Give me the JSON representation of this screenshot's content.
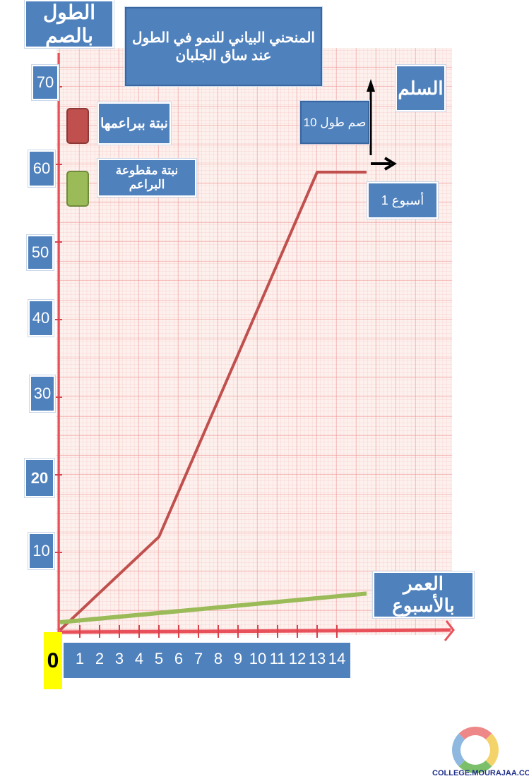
{
  "chart_data": {
    "type": "line",
    "title": "المنحني البياني للنمو في الطول عند ساق الجلبان",
    "ylabel": "الطول بالصم",
    "xlabel": "العمر بالأسبوع",
    "origin_label": "0",
    "xlim": [
      0,
      20
    ],
    "ylim": [
      0,
      70
    ],
    "x_ticks": [
      "1",
      "2",
      "3",
      "4",
      "5",
      "6",
      "7",
      "8",
      "9",
      "10",
      "11",
      "12",
      "13",
      "14"
    ],
    "y_ticks": [
      "10",
      "20",
      "30",
      "40",
      "50",
      "60",
      "70"
    ],
    "grid": true,
    "legend_placement": "top-left",
    "series": [
      {
        "name": "نبتة ببراعمها",
        "color": "#c0504d",
        "points": [
          [
            0,
            0
          ],
          [
            5,
            12
          ],
          [
            13,
            59
          ],
          [
            15.5,
            59
          ]
        ]
      },
      {
        "name": "نبتة مقطوعة البراعم",
        "color": "#9bbb59",
        "points": [
          [
            0,
            1
          ],
          [
            15.5,
            4.7
          ]
        ]
      }
    ],
    "scale": {
      "title": "السلم",
      "y_unit": "10 صم طول",
      "x_unit": "1 أسبوع"
    }
  },
  "watermark": "COLLEGE.MOURAJAA.COM"
}
